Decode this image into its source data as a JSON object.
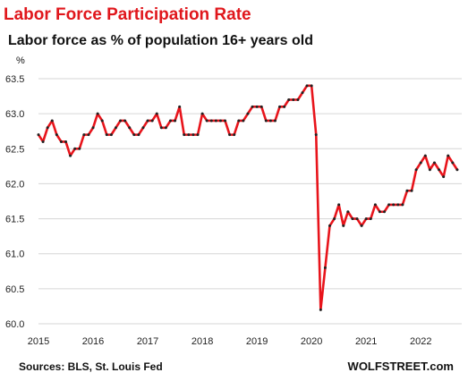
{
  "chart_data": {
    "type": "line",
    "title": "Labor Force Participation  Rate",
    "subtitle": "Labor force as % of population 16+ years old",
    "ylabel": "%",
    "xlabel": "",
    "ylim": [
      60.0,
      63.5
    ],
    "xlim": [
      2015.0,
      2022.75
    ],
    "yticks": [
      "60.0",
      "60.5",
      "61.0",
      "61.5",
      "62.0",
      "62.5",
      "63.0",
      "63.5"
    ],
    "xticks": [
      "2015",
      "2016",
      "2017",
      "2018",
      "2019",
      "2020",
      "2021",
      "2022"
    ],
    "grid": "horizontal",
    "line_color": "#e8141b",
    "marker_color": "#222222",
    "series": [
      {
        "start": "2015-01",
        "frequency": "monthly",
        "values": [
          62.7,
          62.6,
          62.8,
          62.9,
          62.7,
          62.6,
          62.6,
          62.4,
          62.5,
          62.5,
          62.7,
          62.7,
          62.8,
          63.0,
          62.9,
          62.7,
          62.7,
          62.8,
          62.9,
          62.9,
          62.8,
          62.7,
          62.7,
          62.8,
          62.9,
          62.9,
          63.0,
          62.8,
          62.8,
          62.9,
          62.9,
          63.1,
          62.7,
          62.7,
          62.7,
          62.7,
          63.0,
          62.9,
          62.9,
          62.9,
          62.9,
          62.9,
          62.7,
          62.7,
          62.9,
          62.9,
          63.0,
          63.1,
          63.1,
          63.1,
          62.9,
          62.9,
          62.9,
          63.1,
          63.1,
          63.2,
          63.2,
          63.2,
          63.3,
          63.4,
          63.4,
          62.7,
          60.2,
          60.8,
          61.4,
          61.5,
          61.7,
          61.4,
          61.6,
          61.5,
          61.5,
          61.4,
          61.5,
          61.5,
          61.7,
          61.6,
          61.6,
          61.7,
          61.7,
          61.7,
          61.7,
          61.9,
          61.9,
          62.2,
          62.3,
          62.4,
          62.2,
          62.3,
          62.2,
          62.1,
          62.4,
          62.3,
          62.2
        ]
      }
    ]
  },
  "footer": {
    "source": "Sources: BLS, St. Louis Fed",
    "brand": "WOLFSTREET.com"
  }
}
